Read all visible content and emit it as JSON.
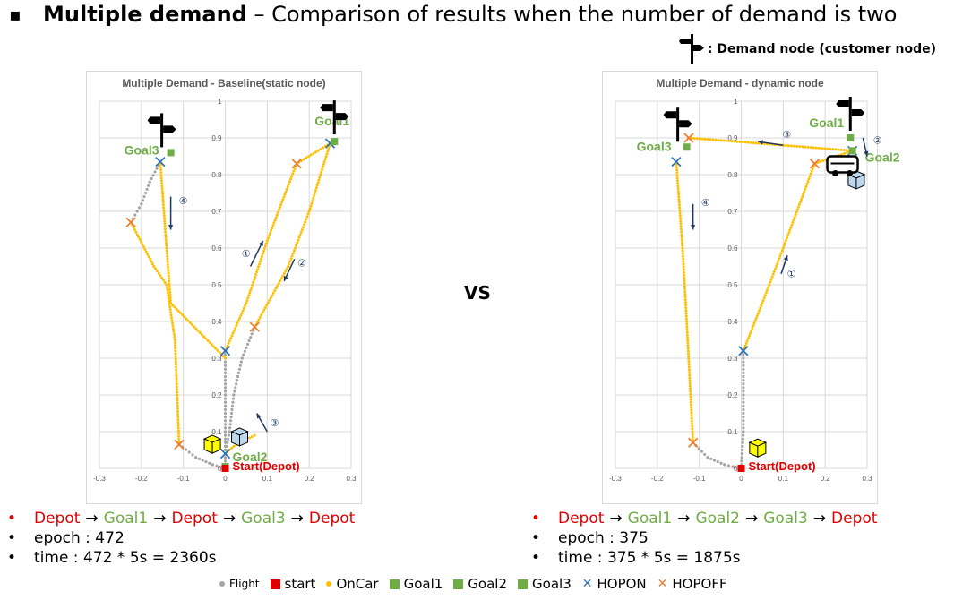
{
  "header": {
    "bullet": "▪",
    "title_bold": "Multiple demand",
    "title_rest": " – Comparison of results when the number of demand is two",
    "demand_node_note": ": Demand node (customer node)"
  },
  "vs_label": "VS",
  "colors": {
    "flight": "#a6a6a6",
    "start": "#e00000",
    "oncar": "#ffc000",
    "goal": "#70ad47",
    "hopon": "#2e75b6",
    "hopoff": "#ed7d31",
    "arrow": "#1f3864"
  },
  "chart_data": [
    {
      "type": "scatter",
      "title": "Multiple Demand - Baseline(static node)",
      "xlim": [
        -0.3,
        0.3
      ],
      "ylim": [
        0,
        1
      ],
      "xticks": [
        "-0.3",
        "-0.2",
        "-0.1",
        "0",
        "0.1",
        "0.2",
        "0.3"
      ],
      "yticks": [
        "0",
        "0.1",
        "0.2",
        "0.3",
        "0.4",
        "0.5",
        "0.6",
        "0.7",
        "0.8",
        "0.9",
        "1"
      ],
      "grid": true,
      "start": {
        "x": 0,
        "y": 0.0,
        "label": "Start(Depot)"
      },
      "goals": [
        {
          "name": "Goal1",
          "x": 0.26,
          "y": 0.89
        },
        {
          "name": "Goal2",
          "x": 0.0,
          "y": 0.005
        },
        {
          "name": "Goal3",
          "x": -0.13,
          "y": 0.86
        }
      ],
      "hopon": [
        [
          0.0,
          0.32
        ],
        [
          0.25,
          0.885
        ],
        [
          -0.155,
          0.835
        ],
        [
          0.0,
          0.04
        ]
      ],
      "hopoff": [
        [
          0.17,
          0.83
        ],
        [
          0.07,
          0.385
        ],
        [
          -0.225,
          0.67
        ],
        [
          -0.11,
          0.065
        ]
      ],
      "flight_paths": [
        [
          [
            0,
            0.0
          ],
          [
            0.0,
            0.1
          ],
          [
            0.0,
            0.2
          ],
          [
            0.0,
            0.32
          ]
        ],
        [
          [
            -0.155,
            0.835
          ],
          [
            -0.18,
            0.78
          ],
          [
            -0.2,
            0.72
          ],
          [
            -0.225,
            0.67
          ]
        ],
        [
          [
            0.07,
            0.385
          ],
          [
            0.04,
            0.3
          ],
          [
            0.02,
            0.2
          ],
          [
            0.01,
            0.1
          ],
          [
            0.0,
            0.04
          ]
        ],
        [
          [
            -0.11,
            0.065
          ],
          [
            -0.07,
            0.03
          ],
          [
            -0.03,
            0.01
          ],
          [
            0,
            0.0
          ]
        ]
      ],
      "oncar_paths": [
        [
          [
            0.0,
            0.32
          ],
          [
            0.05,
            0.45
          ],
          [
            0.1,
            0.62
          ],
          [
            0.17,
            0.83
          ],
          [
            0.25,
            0.885
          ]
        ],
        [
          [
            0.25,
            0.885
          ],
          [
            0.2,
            0.7
          ],
          [
            0.15,
            0.55
          ],
          [
            0.07,
            0.385
          ]
        ],
        [
          [
            0.07,
            0.09
          ],
          [
            0.02,
            0.06
          ],
          [
            0.0,
            0.04
          ]
        ],
        [
          [
            -0.155,
            0.835
          ],
          [
            -0.14,
            0.6
          ],
          [
            -0.13,
            0.45
          ],
          [
            0.0,
            0.3
          ]
        ],
        [
          [
            -0.225,
            0.67
          ],
          [
            -0.17,
            0.55
          ],
          [
            -0.14,
            0.5
          ],
          [
            -0.12,
            0.35
          ],
          [
            -0.11,
            0.065
          ]
        ]
      ],
      "step_labels": [
        "①",
        "②",
        "③",
        "④"
      ],
      "sequence": [
        "Depot",
        "Goal1",
        "Depot",
        "Goal3",
        "Depot"
      ],
      "epoch_text": "epoch : 472",
      "time_text": "time : 472 * 5s  = 2360s"
    },
    {
      "type": "scatter",
      "title": "Multiple Demand - dynamic node",
      "xlim": [
        -0.3,
        0.3
      ],
      "ylim": [
        0,
        1
      ],
      "xticks": [
        "-0.3",
        "-0.2",
        "-0.1",
        "0",
        "0.1",
        "0.2",
        "0.3"
      ],
      "yticks": [
        "0",
        "0.1",
        "0.2",
        "0.3",
        "0.4",
        "0.5",
        "0.6",
        "0.7",
        "0.8",
        "0.9",
        "1"
      ],
      "grid": true,
      "start": {
        "x": 0,
        "y": 0.0,
        "label": "Start(Depot)"
      },
      "goals": [
        {
          "name": "Goal1",
          "x": 0.26,
          "y": 0.9
        },
        {
          "name": "Goal2",
          "x": 0.265,
          "y": 0.865
        },
        {
          "name": "Goal3",
          "x": -0.13,
          "y": 0.875
        }
      ],
      "hopon": [
        [
          0.005,
          0.32
        ],
        [
          0.265,
          0.865
        ],
        [
          -0.155,
          0.835
        ]
      ],
      "hopoff": [
        [
          0.175,
          0.83
        ],
        [
          -0.125,
          0.9
        ],
        [
          -0.115,
          0.07
        ]
      ],
      "flight_paths": [
        [
          [
            0,
            0.0
          ],
          [
            0.005,
            0.1
          ],
          [
            0.005,
            0.2
          ],
          [
            0.005,
            0.32
          ]
        ],
        [
          [
            -0.115,
            0.07
          ],
          [
            -0.08,
            0.03
          ],
          [
            -0.04,
            0.01
          ],
          [
            0,
            0.0
          ]
        ]
      ],
      "oncar_paths": [
        [
          [
            0.005,
            0.32
          ],
          [
            0.05,
            0.45
          ],
          [
            0.1,
            0.6
          ],
          [
            0.175,
            0.83
          ],
          [
            0.265,
            0.865
          ]
        ],
        [
          [
            0.265,
            0.865
          ],
          [
            0.1,
            0.88
          ],
          [
            -0.125,
            0.9
          ]
        ],
        [
          [
            -0.155,
            0.835
          ],
          [
            -0.14,
            0.6
          ],
          [
            -0.13,
            0.4
          ],
          [
            -0.115,
            0.07
          ]
        ]
      ],
      "step_labels": [
        "①",
        "②",
        "③",
        "④"
      ],
      "sequence": [
        "Depot",
        "Goal1",
        "Goal2",
        "Goal3",
        "Depot"
      ],
      "epoch_text": "epoch : 375",
      "time_text": "time : 375 * 5s  = 1875s"
    }
  ],
  "bottom_legend": [
    {
      "label": "Flight",
      "kind": "dot",
      "color": "#a6a6a6"
    },
    {
      "label": "start",
      "kind": "square",
      "color": "#e00000"
    },
    {
      "label": "OnCar",
      "kind": "dot",
      "color": "#ffc000"
    },
    {
      "label": "Goal1",
      "kind": "square",
      "color": "#70ad47"
    },
    {
      "label": "Goal2",
      "kind": "square",
      "color": "#70ad47"
    },
    {
      "label": "Goal3",
      "kind": "square",
      "color": "#70ad47"
    },
    {
      "label": "HOPON",
      "kind": "x",
      "color": "#2e75b6"
    },
    {
      "label": "HOPOFF",
      "kind": "x",
      "color": "#ed7d31"
    }
  ]
}
